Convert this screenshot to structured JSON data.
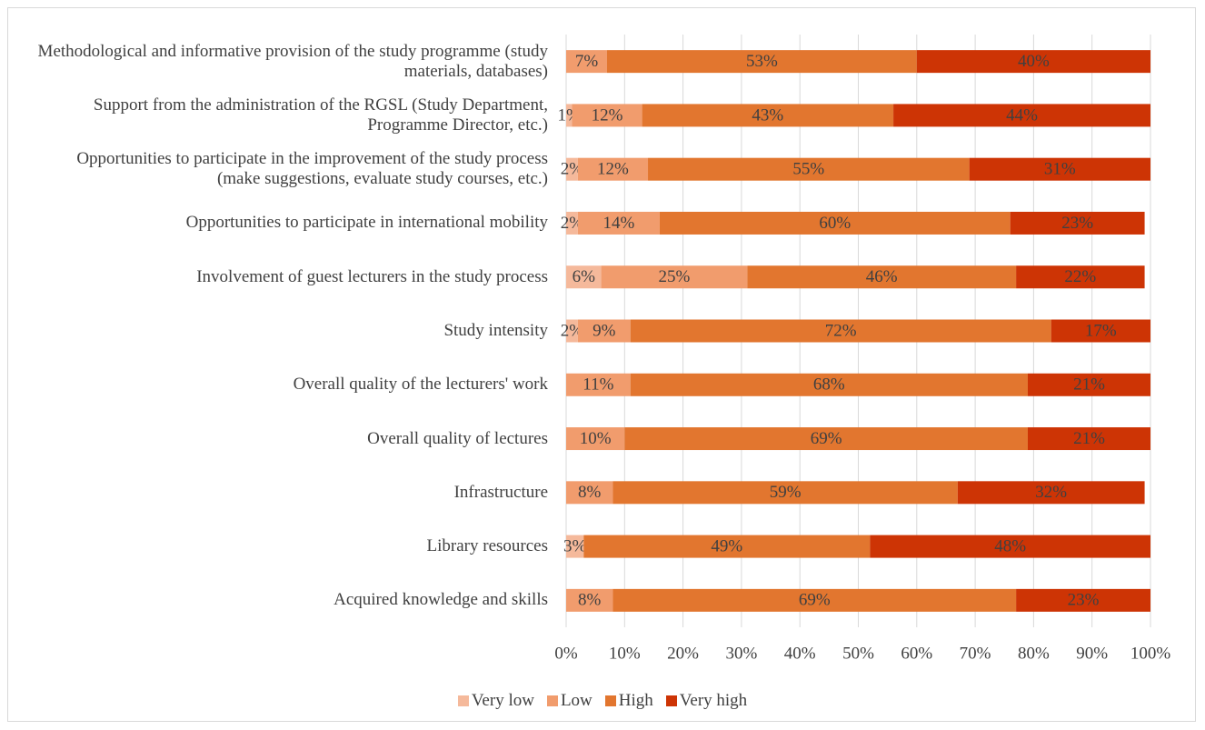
{
  "chart_data": {
    "type": "stacked-bar-horizontal",
    "categories": [
      "Methodological and informative provision of the study programme (study materials, databases)",
      "Support from the administration of the RGSL (Study Department, Programme Director, etc.)",
      "Opportunities to participate in the improvement of the study process (make suggestions, evaluate study courses, etc.)",
      "Opportunities to participate in international mobility",
      "Involvement of guest lecturers in the study process",
      "Study intensity",
      "Overall quality of the lecturers' work",
      "Overall quality of lectures",
      "Infrastructure",
      "Library resources",
      "Acquired knowledge and skills"
    ],
    "series": [
      {
        "name": "Very low",
        "color": "#f5b99b",
        "values": [
          null,
          1,
          2,
          2,
          6,
          2,
          null,
          null,
          null,
          3,
          null
        ],
        "value_labels": [
          null,
          "1%",
          "2%",
          "2%",
          "6%",
          "2%",
          null,
          null,
          null,
          "3%",
          null
        ]
      },
      {
        "name": "Low",
        "color": "#f19c6d",
        "values": [
          7,
          12,
          12,
          14,
          25,
          9,
          11,
          10,
          8,
          null,
          8
        ],
        "value_labels": [
          "7%",
          "12%",
          "12%",
          "14%",
          "25%",
          "9%",
          "11%",
          "10%",
          "8%",
          null,
          "8%"
        ]
      },
      {
        "name": "High",
        "color": "#e2762f",
        "values": [
          53,
          43,
          55,
          60,
          46,
          72,
          68,
          69,
          59,
          49,
          69
        ],
        "value_labels": [
          "53%",
          "43%",
          "55%",
          "60%",
          "46%",
          "72%",
          "68%",
          "69%",
          "59%",
          "49%",
          "69%"
        ]
      },
      {
        "name": "Very high",
        "color": "#cd3405",
        "values": [
          40,
          44,
          31,
          23,
          22,
          17,
          21,
          21,
          32,
          48,
          23
        ],
        "value_labels": [
          "40%",
          "44%",
          "31%",
          "23%",
          "22%",
          "17%",
          "21%",
          "21%",
          "32%",
          "48%",
          "23%"
        ]
      }
    ],
    "xlim": [
      0,
      100
    ],
    "xticks": [
      {
        "value": 0,
        "label": "0%"
      },
      {
        "value": 10,
        "label": "10%"
      },
      {
        "value": 20,
        "label": "20%"
      },
      {
        "value": 30,
        "label": "30%"
      },
      {
        "value": 40,
        "label": "40%"
      },
      {
        "value": 50,
        "label": "50%"
      },
      {
        "value": 60,
        "label": "60%"
      },
      {
        "value": 70,
        "label": "70%"
      },
      {
        "value": 80,
        "label": "80%"
      },
      {
        "value": 90,
        "label": "90%"
      },
      {
        "value": 100,
        "label": "100%"
      }
    ],
    "grid": true,
    "legend": "bottom"
  }
}
